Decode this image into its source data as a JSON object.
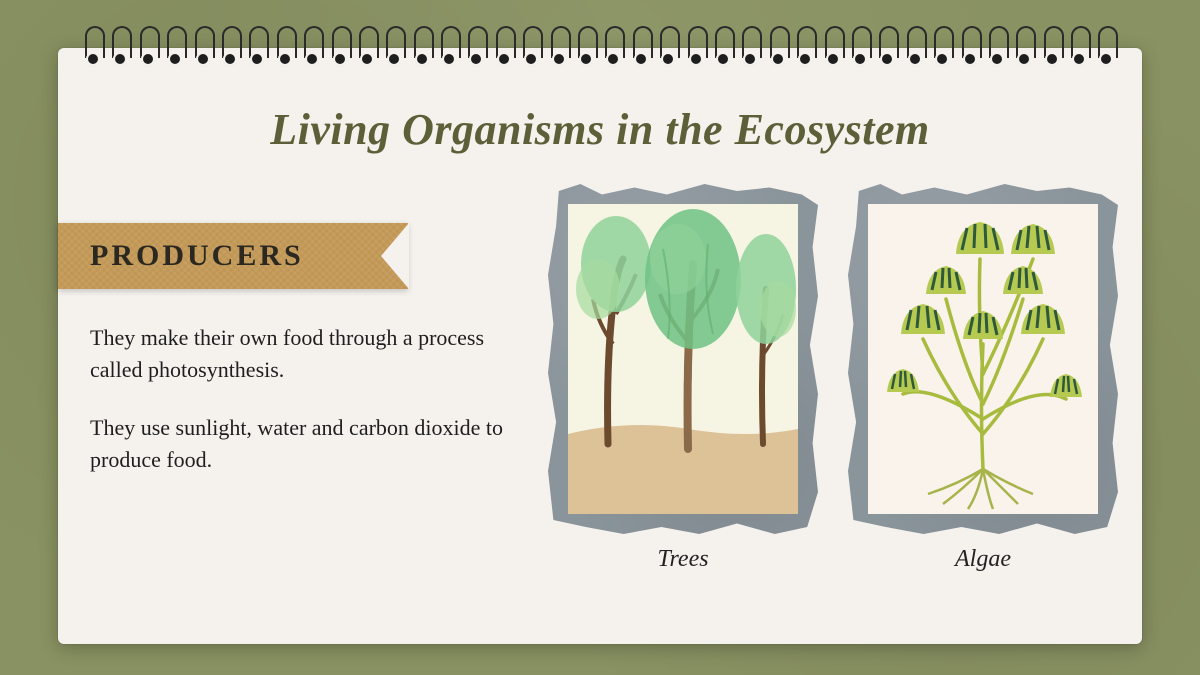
{
  "page": {
    "background_color": "#899262",
    "notebook_color": "#f5f2ee"
  },
  "title": {
    "text": "Living Organisms in the Ecosystem",
    "color": "#5c6038",
    "fontsize": 44,
    "style": "italic"
  },
  "ribbon": {
    "label": "PRODUCERS",
    "background": "#c49a58",
    "text_color": "#2a2820",
    "fontsize": 30
  },
  "body": {
    "p1": "They make their own food through a process called photosynthesis.",
    "p2": "They use sunlight, water and carbon dioxide to produce food.",
    "fontsize": 22,
    "color": "#1e1e1e"
  },
  "figures": [
    {
      "caption": "Trees",
      "torn_bg": "#8a949b",
      "inner_bg": "#faf5ec",
      "illustration": {
        "type": "trees",
        "ground_color": "#d9b88a",
        "sky_color": "#f6f4e2",
        "trunk_color": "#6b4a2e",
        "trunk_highlight": "#8a6a48",
        "foliage_colors": [
          "#8fd29a",
          "#6fc284",
          "#a6dba0",
          "#5fae6e"
        ]
      }
    },
    {
      "caption": "Algae",
      "torn_bg": "#8a949b",
      "inner_bg": "#f9f3ec",
      "illustration": {
        "type": "algae",
        "bg_color": "#f9f3ec",
        "stem_color": "#a7bb3e",
        "head_fill": "#b6c951",
        "head_stripe": "#2e5a3b",
        "root_color": "#9fae3a"
      }
    }
  ],
  "spiral": {
    "count": 38,
    "ring_color": "#2a2a2a",
    "hole_color": "#1e1e1e"
  }
}
